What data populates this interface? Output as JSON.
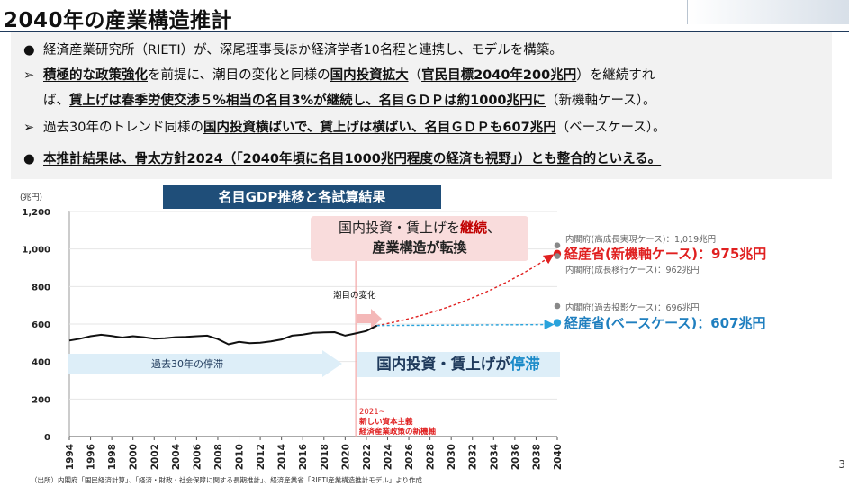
{
  "title": "2040年の産業構造推計",
  "bullets": {
    "b1": {
      "marker": "●",
      "text": "経済産業研究所（RIETI）が、深尾理事長ほか経済学者10名程と連携し、モデルを構築。"
    },
    "b2": {
      "marker": "➢",
      "p1": "積極的な政策強化",
      "p2": "を前提に、潮目の変化と同様の",
      "p3": "国内投資拡大",
      "p4": "（",
      "p5": "官民目標2040年200兆円",
      "p6": "）を継続すれ",
      "l2a": "ば、",
      "l2b": "賃上げは春季労使交渉５%相当の名目3%が継続し、名目ＧＤＰは約1000兆円に",
      "l2c": "（新機軸ケース）。"
    },
    "b3": {
      "marker": "➢",
      "p1": "過去30年のトレンド同様の",
      "p2": "国内投資横ばいで、賃上げは横ばい、名目ＧＤＰも607兆円",
      "p3": "（ベースケース）。"
    },
    "b4": {
      "marker": "●",
      "text": "本推計結果は、骨太方針2024（「2040年頃に名目1000兆円程度の経済も視野」）とも整合的といえる。"
    }
  },
  "chart_title": "名目GDP推移と各試算結果",
  "chart_data": {
    "type": "line",
    "unit_label": "(兆円)",
    "ylim": [
      0,
      1200
    ],
    "y_ticks": [
      "0",
      "200",
      "400",
      "600",
      "800",
      "1,000",
      "1,200"
    ],
    "xlim": [
      1994,
      2040
    ],
    "x_ticks": [
      "1994",
      "1996",
      "1998",
      "2000",
      "2002",
      "2004",
      "2006",
      "2008",
      "2010",
      "2012",
      "2014",
      "2016",
      "2018",
      "2020",
      "2022",
      "2024",
      "2026",
      "2028",
      "2030",
      "2032",
      "2034",
      "2036",
      "2038",
      "2040"
    ],
    "historical": {
      "x": [
        1994,
        1995,
        1996,
        1997,
        1998,
        1999,
        2000,
        2001,
        2002,
        2003,
        2004,
        2005,
        2006,
        2007,
        2008,
        2009,
        2010,
        2011,
        2012,
        2013,
        2014,
        2015,
        2016,
        2017,
        2018,
        2019,
        2020,
        2021,
        2022,
        2023
      ],
      "y": [
        512,
        522,
        535,
        543,
        536,
        528,
        535,
        530,
        522,
        524,
        530,
        532,
        535,
        538,
        520,
        492,
        505,
        498,
        500,
        508,
        518,
        538,
        544,
        553,
        556,
        557,
        538,
        550,
        563,
        592
      ],
      "color": "#111111"
    },
    "projections": [
      {
        "name": "経産省(新機軸ケース)",
        "x": [
          2023,
          2040
        ],
        "y": [
          592,
          975
        ],
        "color": "#e02020",
        "style": "dashed"
      },
      {
        "name": "経産省(ベースケース)",
        "x": [
          2023,
          2040
        ],
        "y": [
          592,
          607
        ],
        "color": "#29a3dc",
        "style": "dashed"
      }
    ],
    "points": [
      {
        "label": "内閣府(高成長実現ケース)：1,019兆円",
        "x": 2040,
        "y": 1019,
        "color": "#888888"
      },
      {
        "label": "経産省(新機軸ケース)：975兆円",
        "x": 2040,
        "y": 975,
        "color": "#e02020"
      },
      {
        "label": "内閣府(成長移行ケース)：962兆円",
        "x": 2040,
        "y": 962,
        "color": "#888888"
      },
      {
        "label": "内閣府(過去投影ケース)：696兆円",
        "x": 2040,
        "y": 696,
        "color": "#888888"
      },
      {
        "label": "経産省(ベースケース)：607兆円",
        "x": 2040,
        "y": 607,
        "color": "#29a3dc"
      }
    ],
    "marker_year": 2021,
    "annotations": {
      "shiome": "潮目の変化",
      "stagnation_arrow": "過去30年の停滞",
      "callout_p1": "国内投資・賃上げを",
      "callout_red": "継続",
      "callout_p2": "、",
      "callout_l2": "産業構造が転換",
      "stag_box_p1": "国内投資・賃上げが",
      "stag_box_blue": "停滞",
      "marker_l1": "2021~",
      "marker_l2": "新しい資本主義",
      "marker_l3": "経済産業政策の新機軸"
    }
  },
  "labels": {
    "nkaku_high": "内閣府(高成長実現ケース)：1,019兆円",
    "meti_new": "経産省(新機軸ケース)：975兆円",
    "nkaku_growth": "内閣府(成長移行ケース)：962兆円",
    "nkaku_past": "内閣府(過去投影ケース)：696兆円",
    "meti_base": "経産省(ベースケース)：607兆円"
  },
  "footer": {
    "source": "（出所）内閣府「国民経済計算」、「経済・財政・社会保障に関する長期推計」、経済産業省「RIETI産業構造推計モデル」より作成",
    "page_number": "3"
  },
  "colors": {
    "navy": "#1f4e79",
    "red": "#e02020",
    "blue": "#29a3dc",
    "gray": "#888888"
  }
}
